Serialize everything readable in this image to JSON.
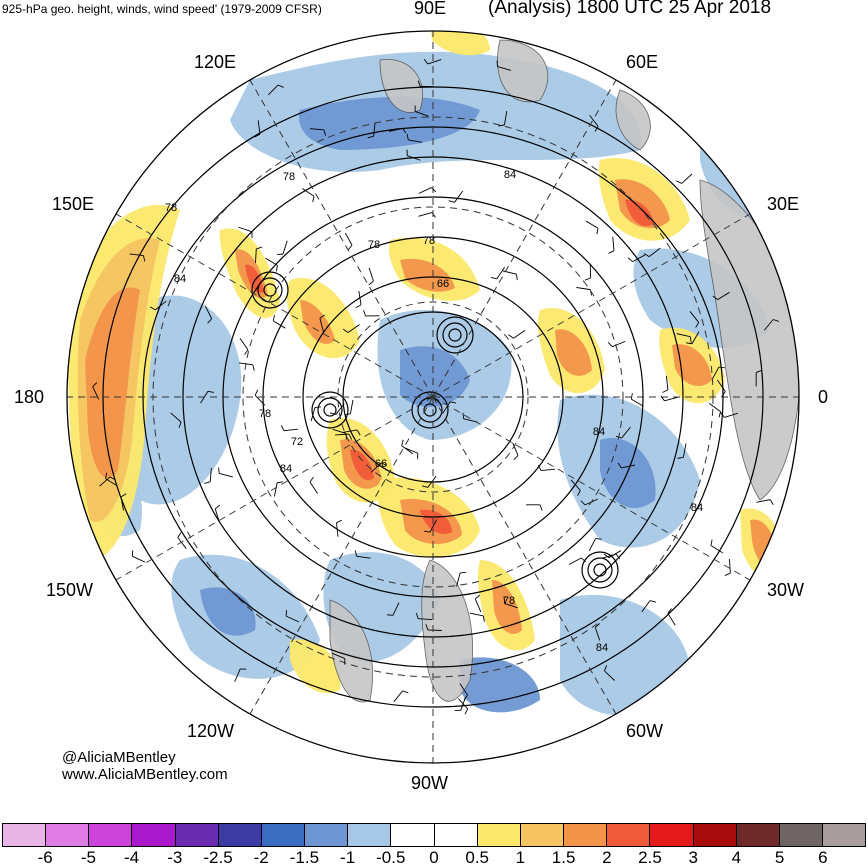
{
  "header": {
    "left_title": "925-hPa geo. height, winds, wind speed' (1979-2009 CFSR)",
    "right_title": "(Analysis) 1800 UTC 25 Apr 2018"
  },
  "longitude_labels": {
    "n90e": "90E",
    "n60e": "60E",
    "n30e": "30E",
    "e0": "0",
    "s30w": "30W",
    "s60w": "60W",
    "s90w": "90W",
    "s120w": "120W",
    "s150w": "150W",
    "w180": "180",
    "n150e": "150E",
    "n120e": "120E"
  },
  "credits": {
    "line1": "@AliciaMBentley",
    "line2": "www.AliciaMBentley.com"
  },
  "contour_labels": [
    "84",
    "78",
    "78",
    "78",
    "78",
    "66",
    "84",
    "78",
    "72",
    "66",
    "84",
    "84",
    "84",
    "78",
    "84"
  ],
  "colorbar": {
    "colors": [
      "#e8b6e6",
      "#e07de4",
      "#cc44d9",
      "#aa18cc",
      "#6a2cb0",
      "#3e3aa4",
      "#3c6cc0",
      "#6e96d2",
      "#a6c8e6",
      "#ffffff",
      "#ffffff",
      "#fce86a",
      "#f6c462",
      "#f2944a",
      "#f05a38",
      "#e41a1a",
      "#a80c0c",
      "#6e2a2a",
      "#6e6464",
      "#a89c9c"
    ],
    "ticks": [
      "-6",
      "-5",
      "-4",
      "-3",
      "-2.5",
      "-2",
      "-1.5",
      "-1",
      "-0.5",
      "0",
      "0.5",
      "1",
      "1.5",
      "2",
      "2.5",
      "3",
      "4",
      "5",
      "6"
    ]
  },
  "map_colors": {
    "land_gray": "#c6c6c6",
    "blue_light": "#a6c8e6",
    "blue_mid": "#6e96d2",
    "blue_dark": "#3c6cc0",
    "yellow": "#fce86a",
    "orange_light": "#f6c462",
    "orange": "#f2944a",
    "red": "#f05a38"
  }
}
